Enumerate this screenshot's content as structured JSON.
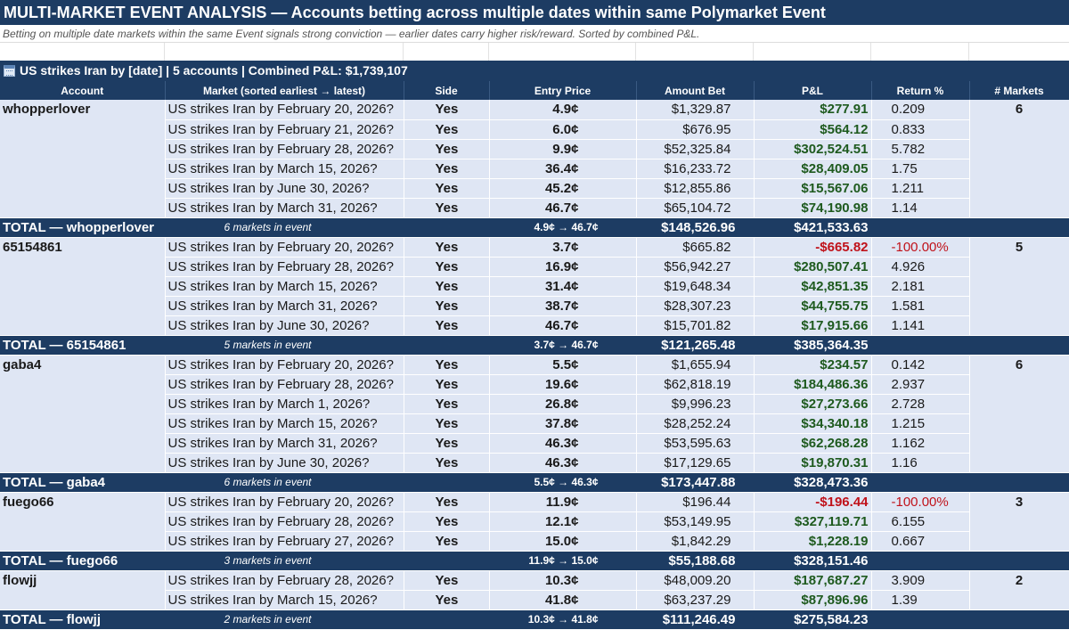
{
  "title": "MULTI-MARKET EVENT ANALYSIS — Accounts betting across multiple dates within same Polymarket Event",
  "subtitle": "Betting on multiple date markets within the same Event signals strong conviction — earlier dates carry higher risk/reward. Sorted by combined P&L.",
  "event_header": "US strikes Iran by [date] | 5 accounts | Combined P&L: $1,739,107",
  "event_icon": "calendar-icon",
  "columns": {
    "account": "Account",
    "market": "Market (sorted earliest → latest)",
    "side": "Side",
    "entry_price": "Entry Price",
    "amount_bet": "Amount Bet",
    "pnl": "P&L",
    "return": "Return %",
    "markets": "# Markets"
  },
  "colors": {
    "header_bg": "#1d3c63",
    "row_bg": "#dfe6f4",
    "price": "#b3141a",
    "positive": "#1e5a1e",
    "negative": "#c0121a",
    "account": "#1f4e8c"
  },
  "accounts": [
    {
      "name": "whopperlover",
      "num_markets": "6",
      "rows": [
        {
          "market": "US strikes Iran by February 20, 2026?",
          "side": "Yes",
          "price": "4.9¢",
          "amount": "$1,329.87",
          "pnl": "$277.91",
          "pnl_sign": "pos",
          "ret": "0.209",
          "ret_sign": "pos"
        },
        {
          "market": "US strikes Iran by February 21, 2026?",
          "side": "Yes",
          "price": "6.0¢",
          "amount": "$676.95",
          "pnl": "$564.12",
          "pnl_sign": "pos",
          "ret": "0.833",
          "ret_sign": "pos"
        },
        {
          "market": "US strikes Iran by February 28, 2026?",
          "side": "Yes",
          "price": "9.9¢",
          "amount": "$52,325.84",
          "pnl": "$302,524.51",
          "pnl_sign": "pos",
          "ret": "5.782",
          "ret_sign": "pos"
        },
        {
          "market": "US strikes Iran by March 15, 2026?",
          "side": "Yes",
          "price": "36.4¢",
          "amount": "$16,233.72",
          "pnl": "$28,409.05",
          "pnl_sign": "pos",
          "ret": "1.75",
          "ret_sign": "pos"
        },
        {
          "market": "US strikes Iran by June 30, 2026?",
          "side": "Yes",
          "price": "45.2¢",
          "amount": "$12,855.86",
          "pnl": "$15,567.06",
          "pnl_sign": "pos",
          "ret": "1.211",
          "ret_sign": "pos"
        },
        {
          "market": "US strikes Iran by March 31, 2026?",
          "side": "Yes",
          "price": "46.7¢",
          "amount": "$65,104.72",
          "pnl": "$74,190.98",
          "pnl_sign": "pos",
          "ret": "1.14",
          "ret_sign": "pos"
        }
      ],
      "total": {
        "label": "TOTAL — whopperlover",
        "count": "6 markets in event",
        "range": "4.9¢ → 46.7¢",
        "amount": "$148,526.96",
        "pnl": "$421,533.63"
      }
    },
    {
      "name": "65154861",
      "num_markets": "5",
      "rows": [
        {
          "market": "US strikes Iran by February 20, 2026?",
          "side": "Yes",
          "price": "3.7¢",
          "amount": "$665.82",
          "pnl": "-$665.82",
          "pnl_sign": "neg",
          "ret": "-100.00%",
          "ret_sign": "neg"
        },
        {
          "market": "US strikes Iran by February 28, 2026?",
          "side": "Yes",
          "price": "16.9¢",
          "amount": "$56,942.27",
          "pnl": "$280,507.41",
          "pnl_sign": "pos",
          "ret": "4.926",
          "ret_sign": "pos"
        },
        {
          "market": "US strikes Iran by March 15, 2026?",
          "side": "Yes",
          "price": "31.4¢",
          "amount": "$19,648.34",
          "pnl": "$42,851.35",
          "pnl_sign": "pos",
          "ret": "2.181",
          "ret_sign": "pos"
        },
        {
          "market": "US strikes Iran by March 31, 2026?",
          "side": "Yes",
          "price": "38.7¢",
          "amount": "$28,307.23",
          "pnl": "$44,755.75",
          "pnl_sign": "pos",
          "ret": "1.581",
          "ret_sign": "pos"
        },
        {
          "market": "US strikes Iran by June 30, 2026?",
          "side": "Yes",
          "price": "46.7¢",
          "amount": "$15,701.82",
          "pnl": "$17,915.66",
          "pnl_sign": "pos",
          "ret": "1.141",
          "ret_sign": "pos"
        }
      ],
      "total": {
        "label": "TOTAL — 65154861",
        "count": "5 markets in event",
        "range": "3.7¢ → 46.7¢",
        "amount": "$121,265.48",
        "pnl": "$385,364.35"
      }
    },
    {
      "name": "gaba4",
      "num_markets": "6",
      "rows": [
        {
          "market": "US strikes Iran by February 20, 2026?",
          "side": "Yes",
          "price": "5.5¢",
          "amount": "$1,655.94",
          "pnl": "$234.57",
          "pnl_sign": "pos",
          "ret": "0.142",
          "ret_sign": "pos"
        },
        {
          "market": "US strikes Iran by February 28, 2026?",
          "side": "Yes",
          "price": "19.6¢",
          "amount": "$62,818.19",
          "pnl": "$184,486.36",
          "pnl_sign": "pos",
          "ret": "2.937",
          "ret_sign": "pos"
        },
        {
          "market": "US strikes Iran by March 1, 2026?",
          "side": "Yes",
          "price": "26.8¢",
          "amount": "$9,996.23",
          "pnl": "$27,273.66",
          "pnl_sign": "pos",
          "ret": "2.728",
          "ret_sign": "pos"
        },
        {
          "market": "US strikes Iran by March 15, 2026?",
          "side": "Yes",
          "price": "37.8¢",
          "amount": "$28,252.24",
          "pnl": "$34,340.18",
          "pnl_sign": "pos",
          "ret": "1.215",
          "ret_sign": "pos"
        },
        {
          "market": "US strikes Iran by March 31, 2026?",
          "side": "Yes",
          "price": "46.3¢",
          "amount": "$53,595.63",
          "pnl": "$62,268.28",
          "pnl_sign": "pos",
          "ret": "1.162",
          "ret_sign": "pos"
        },
        {
          "market": "US strikes Iran by June 30, 2026?",
          "side": "Yes",
          "price": "46.3¢",
          "amount": "$17,129.65",
          "pnl": "$19,870.31",
          "pnl_sign": "pos",
          "ret": "1.16",
          "ret_sign": "pos"
        }
      ],
      "total": {
        "label": "TOTAL — gaba4",
        "count": "6 markets in event",
        "range": "5.5¢ → 46.3¢",
        "amount": "$173,447.88",
        "pnl": "$328,473.36"
      }
    },
    {
      "name": "fuego66",
      "num_markets": "3",
      "rows": [
        {
          "market": "US strikes Iran by February 20, 2026?",
          "side": "Yes",
          "price": "11.9¢",
          "amount": "$196.44",
          "pnl": "-$196.44",
          "pnl_sign": "neg",
          "ret": "-100.00%",
          "ret_sign": "neg"
        },
        {
          "market": "US strikes Iran by February 28, 2026?",
          "side": "Yes",
          "price": "12.1¢",
          "amount": "$53,149.95",
          "pnl": "$327,119.71",
          "pnl_sign": "pos",
          "ret": "6.155",
          "ret_sign": "pos"
        },
        {
          "market": "US strikes Iran by February 27, 2026?",
          "side": "Yes",
          "price": "15.0¢",
          "amount": "$1,842.29",
          "pnl": "$1,228.19",
          "pnl_sign": "pos",
          "ret": "0.667",
          "ret_sign": "pos"
        }
      ],
      "total": {
        "label": "TOTAL — fuego66",
        "count": "3 markets in event",
        "range": "11.9¢ → 15.0¢",
        "amount": "$55,188.68",
        "pnl": "$328,151.46"
      }
    },
    {
      "name": "flowjj",
      "num_markets": "2",
      "rows": [
        {
          "market": "US strikes Iran by February 28, 2026?",
          "side": "Yes",
          "price": "10.3¢",
          "amount": "$48,009.20",
          "pnl": "$187,687.27",
          "pnl_sign": "pos",
          "ret": "3.909",
          "ret_sign": "pos"
        },
        {
          "market": "US strikes Iran by March 15, 2026?",
          "side": "Yes",
          "price": "41.8¢",
          "amount": "$63,237.29",
          "pnl": "$87,896.96",
          "pnl_sign": "pos",
          "ret": "1.39",
          "ret_sign": "pos"
        }
      ],
      "total": {
        "label": "TOTAL — flowjj",
        "count": "2 markets in event",
        "range": "10.3¢ → 41.8¢",
        "amount": "$111,246.49",
        "pnl": "$275,584.23"
      }
    }
  ]
}
